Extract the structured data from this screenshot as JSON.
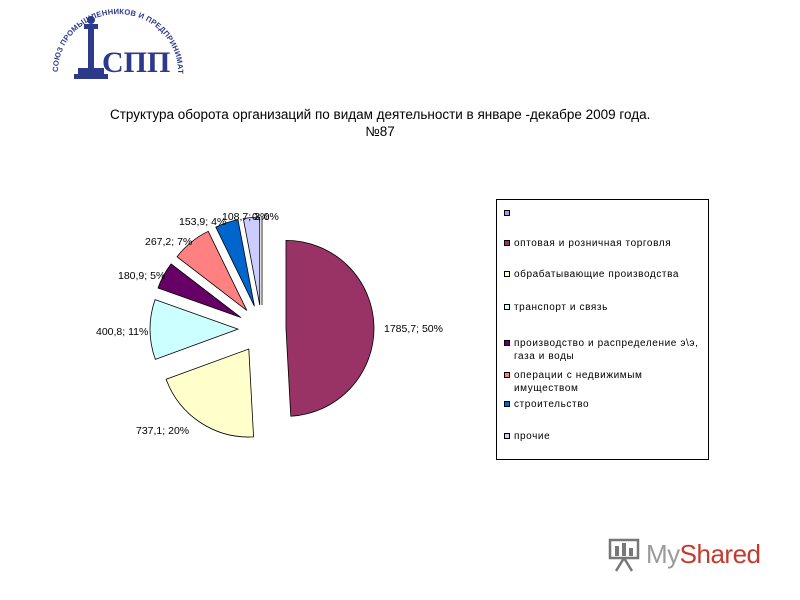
{
  "logo": {
    "ring_text": "СОЮЗ ПРОМЫШЛЕННИКОВ И ПРЕДПРИНИМАТЕЛЕЙ САНКТ-ПЕТЕРБУРГА",
    "monogram": "СПП",
    "color": "#2d3a8c"
  },
  "title": {
    "line1": "Структура оборота организаций по видам деятельности в январе -декабре  2009 года.",
    "line2": "№87"
  },
  "chart_data": {
    "type": "pie",
    "title": "Структура оборота организаций по видам деятельности в январе -декабре  2009 года. №87",
    "legend_position": "right",
    "slices": [
      {
        "legend": "оптовая и розничная торговля",
        "value": 1785.7,
        "percent": 50,
        "label": "1785,7; 50%",
        "color": "#993366"
      },
      {
        "legend": "обрабатывающие производства",
        "value": 737.1,
        "percent": 20,
        "label": "737,1; 20%",
        "color": "#ffffcc"
      },
      {
        "legend": "транспорт и связь",
        "value": 400.8,
        "percent": 11,
        "label": "400,8; 11%",
        "color": "#ccffff"
      },
      {
        "legend": "производство и распределение э\\э, газа и воды",
        "value": 180.9,
        "percent": 5,
        "label": "180,9; 5%",
        "color": "#660066"
      },
      {
        "legend": "операции с недвижимым имуществом",
        "value": 267.2,
        "percent": 7,
        "label": "267,2; 7%",
        "color": "#ff8080"
      },
      {
        "legend": "строительство",
        "value": 153.9,
        "percent": 4,
        "label": "153,9; 4%",
        "color": "#0066cc"
      },
      {
        "legend": "прочие",
        "value": 108.7,
        "percent": 3,
        "label": "108,7; 3%",
        "color": "#ccccff"
      },
      {
        "legend": "",
        "value": 0,
        "percent": 0,
        "label": "0; 0%",
        "color": "#9999ff"
      }
    ]
  },
  "legend": {
    "items": [
      {
        "label": "",
        "color": "#9999ff"
      },
      {
        "label": "оптовая и розничная торговля",
        "color": "#993366"
      },
      {
        "label": "обрабатывающие производства",
        "color": "#ffffcc"
      },
      {
        "label": "транспорт и связь",
        "color": "#ccffff"
      },
      {
        "label": "производство и распределение э\\э, газа и воды",
        "color": "#660066"
      },
      {
        "label": "операции с недвижимым имуществом",
        "color": "#ff8080"
      },
      {
        "label": "строительство",
        "color": "#0066cc"
      },
      {
        "label": "прочие",
        "color": "#ccccff"
      }
    ]
  },
  "watermark": {
    "text_prefix": "My",
    "text_suffix": "Shared"
  }
}
